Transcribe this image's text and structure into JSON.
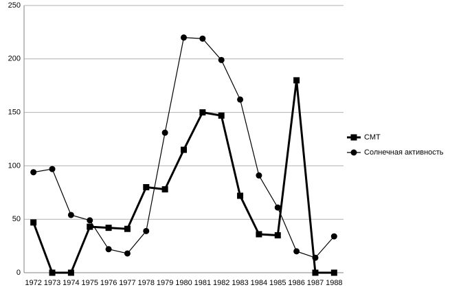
{
  "chart_data": {
    "type": "line",
    "categories": [
      "1972",
      "1973",
      "1974",
      "1975",
      "1976",
      "1977",
      "1978",
      "1979",
      "1980",
      "1981",
      "1982",
      "1983",
      "1984",
      "1985",
      "1986",
      "1987",
      "1988"
    ],
    "series": [
      {
        "name": "СМТ",
        "color": "#000000",
        "marker": "square",
        "values": [
          47,
          0,
          0,
          43,
          42,
          41,
          80,
          78,
          115,
          150,
          147,
          72,
          36,
          35,
          180,
          0,
          0
        ]
      },
      {
        "name": "Солнечная активность",
        "color": "#000000",
        "marker": "circle",
        "values": [
          94,
          97,
          54,
          49,
          22,
          18,
          39,
          131,
          220,
          219,
          199,
          162,
          91,
          61,
          20,
          14,
          34
        ]
      }
    ],
    "ylim": [
      0,
      250
    ],
    "yticks": [
      0,
      50,
      100,
      150,
      200,
      250
    ],
    "grid": true,
    "legend": "right"
  }
}
